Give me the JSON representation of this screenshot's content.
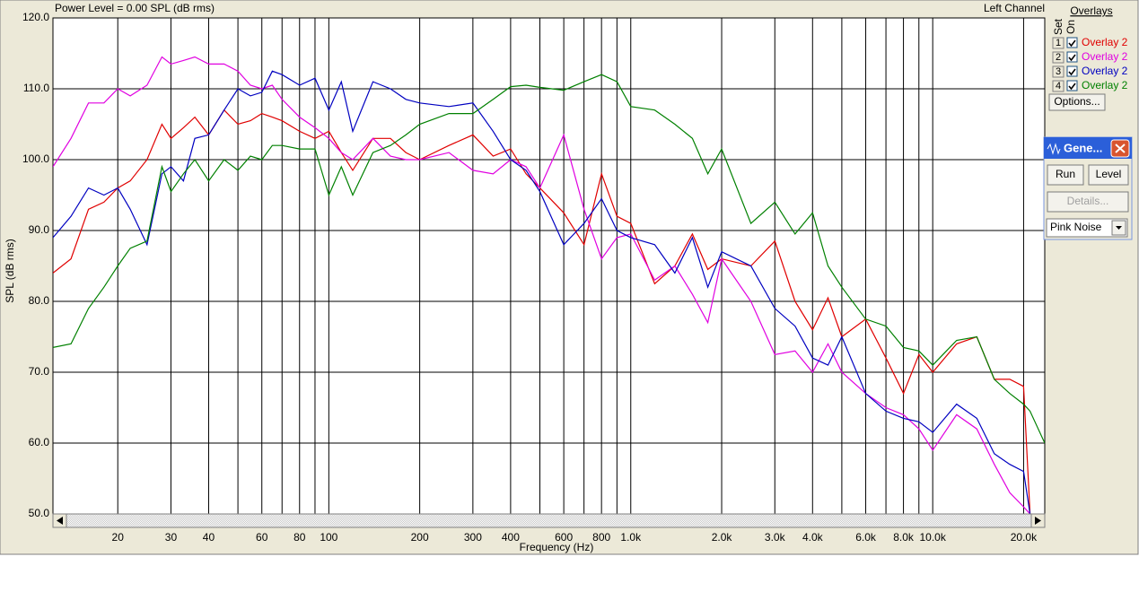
{
  "chart_data": {
    "type": "line",
    "title": "Power Level = 0.00 SPL (dB rms)",
    "subtitle": "Left Channel",
    "x_label": "Frequency (Hz)",
    "y_label": "SPL (dB rms)",
    "xscale": "log",
    "grid": true,
    "xlim": [
      12.2,
      23500
    ],
    "ylim": [
      50,
      120
    ],
    "xticks": [
      20,
      30,
      40,
      60,
      80,
      100,
      200,
      300,
      400,
      600,
      800,
      {
        "value": 1000,
        "label": "1.0k"
      },
      {
        "value": 2000,
        "label": "2.0k"
      },
      {
        "value": 3000,
        "label": "3.0k"
      },
      {
        "value": 4000,
        "label": "4.0k"
      },
      {
        "value": 6000,
        "label": "6.0k"
      },
      {
        "value": 8000,
        "label": "8.0k"
      },
      {
        "value": 10000,
        "label": "10.0k"
      },
      {
        "value": 20000,
        "label": "20.0k"
      }
    ],
    "xgrid_minor": [
      50,
      70,
      90,
      500,
      700,
      900,
      5000,
      7000,
      9000
    ],
    "yticks": [
      {
        "value": 50,
        "label": "50.0"
      },
      {
        "value": 60,
        "label": "60.0"
      },
      {
        "value": 70,
        "label": "70.0"
      },
      {
        "value": 80,
        "label": "80.0"
      },
      {
        "value": 90,
        "label": "90.0"
      },
      {
        "value": 100,
        "label": "100.0"
      },
      {
        "value": 110,
        "label": "110.0"
      },
      {
        "value": 120,
        "label": "120.0"
      }
    ],
    "x": [
      12.2,
      14,
      16,
      18,
      20,
      22,
      25,
      28,
      30,
      33,
      36,
      40,
      45,
      50,
      55,
      60,
      65,
      70,
      80,
      90,
      100,
      110,
      120,
      140,
      160,
      180,
      200,
      250,
      300,
      350,
      400,
      450,
      500,
      600,
      700,
      800,
      900,
      1000,
      1200,
      1400,
      1600,
      1800,
      2000,
      2500,
      3000,
      3500,
      4000,
      4500,
      5000,
      6000,
      7000,
      8000,
      9000,
      10000,
      12000,
      14000,
      16000,
      18000,
      20000,
      21000,
      23500
    ],
    "series": [
      {
        "name": "Overlay 2",
        "color": "#e00000",
        "values": [
          84,
          86,
          93,
          94,
          96,
          97,
          100,
          105,
          103,
          104.5,
          106,
          103.5,
          107,
          105,
          105.5,
          106.5,
          106,
          105.5,
          104,
          103,
          104,
          101,
          98.5,
          103,
          103,
          101,
          100,
          102,
          103.5,
          100.5,
          101.5,
          98,
          96,
          92.5,
          88,
          98,
          92,
          91,
          82.5,
          85,
          89.5,
          84.5,
          86,
          85,
          88.5,
          80,
          76,
          80.5,
          75,
          77.5,
          72,
          67,
          72.5,
          70,
          74,
          75,
          69,
          69,
          68,
          50,
          null
        ]
      },
      {
        "name": "Overlay 2",
        "color": "#e000e0",
        "values": [
          99,
          103,
          108,
          108,
          110,
          109,
          110.5,
          114.5,
          113.5,
          114,
          114.5,
          113.5,
          113.5,
          112.5,
          110.5,
          110,
          110.5,
          108.5,
          106,
          104.5,
          103,
          101,
          100,
          103,
          100.5,
          100,
          100,
          101,
          98.5,
          98,
          100,
          99,
          96,
          103.5,
          93,
          86,
          89,
          89.5,
          83,
          85,
          81,
          77,
          86,
          80,
          72.5,
          73,
          70,
          74,
          70,
          67,
          65,
          64,
          62,
          59,
          64,
          62,
          57,
          53,
          51,
          50,
          null
        ]
      },
      {
        "name": "Overlay 2",
        "color": "#0000c0",
        "values": [
          89,
          92,
          96,
          95,
          96,
          93,
          88,
          98,
          99,
          97,
          103,
          103.5,
          107,
          110,
          109,
          109.5,
          112.5,
          112,
          110.5,
          111.5,
          107,
          111,
          104,
          111,
          110,
          108.5,
          108,
          107.5,
          108,
          104,
          100,
          98.5,
          95.5,
          88,
          91,
          94.5,
          90,
          89,
          88,
          84,
          89,
          82,
          87,
          85,
          79,
          76.5,
          72,
          71,
          75,
          67,
          64.5,
          63.5,
          63,
          61.5,
          65.5,
          63.5,
          58.5,
          57,
          56,
          50,
          null
        ]
      },
      {
        "name": "Overlay 2",
        "color": "#008000",
        "values": [
          73.5,
          74,
          79,
          82,
          85,
          87.5,
          88.5,
          99,
          95.5,
          98,
          100,
          97,
          100,
          98.5,
          100.5,
          100,
          102,
          102,
          101.5,
          101.5,
          95,
          99,
          95,
          101,
          102,
          103.5,
          105,
          106.5,
          106.5,
          108.5,
          110.3,
          110.5,
          110.2,
          109.8,
          111,
          112,
          111,
          107.5,
          107,
          105,
          103,
          98,
          101.5,
          91,
          94,
          89.5,
          92.5,
          85,
          82,
          77.5,
          76.5,
          73.5,
          73,
          71,
          74.5,
          75,
          69,
          67,
          65.5,
          64.5,
          60
        ]
      }
    ]
  },
  "ui": {
    "set_label": "Set",
    "on_label": "On",
    "overlays_label": "Overlays",
    "set_numbers": [
      "1",
      "2",
      "3",
      "4"
    ],
    "options_button": "Options...",
    "generator": {
      "title": "Gene...",
      "run": "Run",
      "level": "Level",
      "details": "Details...",
      "signal": "Pink Noise"
    }
  }
}
